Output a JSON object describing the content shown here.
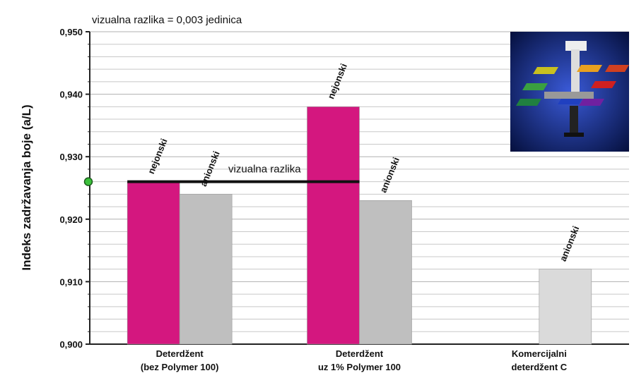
{
  "chart_data": {
    "type": "bar",
    "annotation": "vizualna razlika = 0,003 jedinica",
    "y_label": "Indeks zadržavanja boje (a/L)",
    "categories": [
      "Deterdžent\n(bez Polymer 100)",
      "Deterdžent\nuz 1% Polymer 100",
      "Komercijalni\ndeterdžent C"
    ],
    "series": [
      {
        "name": "nejonski",
        "color": "#d4177f",
        "values": [
          0.926,
          0.938,
          null
        ]
      },
      {
        "name": "anionski",
        "color": "#bfbfbf",
        "colors": [
          "#bfbfbf",
          "#bfbfbf",
          "#dadada"
        ],
        "values": [
          0.924,
          0.923,
          0.912
        ]
      }
    ],
    "reference_line": {
      "value": 0.926,
      "label": "vizualna razlika"
    },
    "ylim": [
      0.9,
      0.95
    ],
    "yticks": [
      {
        "value": 0.9,
        "label": "0,900"
      },
      {
        "value": 0.91,
        "label": "0,910"
      },
      {
        "value": 0.92,
        "label": "0,920"
      },
      {
        "value": 0.93,
        "label": "0,930"
      },
      {
        "value": 0.94,
        "label": "0,940"
      },
      {
        "value": 0.95,
        "label": "0,950"
      }
    ],
    "minor_yticks": [
      0.902,
      0.904,
      0.906,
      0.908,
      0.912,
      0.914,
      0.916,
      0.918,
      0.922,
      0.924,
      0.926,
      0.928,
      0.932,
      0.934,
      0.936,
      0.938,
      0.942,
      0.944,
      0.946,
      0.948
    ],
    "grid": true
  }
}
